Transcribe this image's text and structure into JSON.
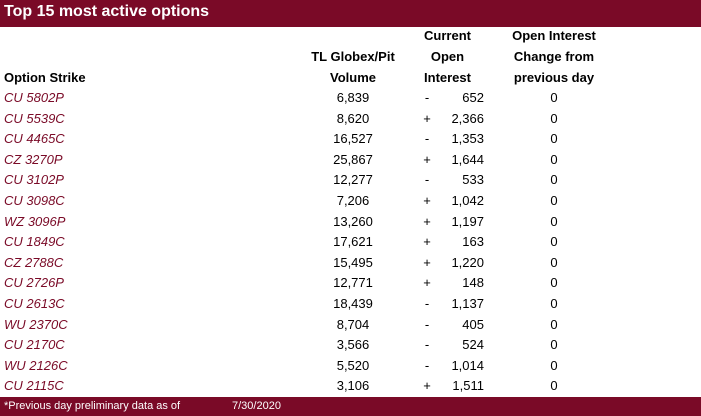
{
  "title": "Top 15 most active options",
  "headers": {
    "strike": "Option Strike",
    "volume": [
      "TL Globex/Pit",
      "Volume"
    ],
    "open_interest": [
      "Current",
      "Open",
      "Interest"
    ],
    "change": [
      "Open Interest",
      "Change from",
      "previous day"
    ]
  },
  "rows": [
    {
      "strike": "CU 5802P",
      "volume": "6,839",
      "sign": "-",
      "oi": "652",
      "change": "0"
    },
    {
      "strike": "CU 5539C",
      "volume": "8,620",
      "sign": "+",
      "oi": "2,366",
      "change": "0"
    },
    {
      "strike": "CU 4465C",
      "volume": "16,527",
      "sign": "-",
      "oi": "1,353",
      "change": "0"
    },
    {
      "strike": "CZ 3270P",
      "volume": "25,867",
      "sign": "+",
      "oi": "1,644",
      "change": "0"
    },
    {
      "strike": "CU 3102P",
      "volume": "12,277",
      "sign": "-",
      "oi": "533",
      "change": "0"
    },
    {
      "strike": "CU 3098C",
      "volume": "7,206",
      "sign": "+",
      "oi": "1,042",
      "change": "0"
    },
    {
      "strike": "WZ 3096P",
      "volume": "13,260",
      "sign": "+",
      "oi": "1,197",
      "change": "0"
    },
    {
      "strike": "CU 1849C",
      "volume": "17,621",
      "sign": "+",
      "oi": "163",
      "change": "0"
    },
    {
      "strike": "CZ 2788C",
      "volume": "15,495",
      "sign": "+",
      "oi": "1,220",
      "change": "0"
    },
    {
      "strike": "CU 2726P",
      "volume": "12,771",
      "sign": "+",
      "oi": "148",
      "change": "0"
    },
    {
      "strike": "CU 2613C",
      "volume": "18,439",
      "sign": "-",
      "oi": "1,137",
      "change": "0"
    },
    {
      "strike": "WU 2370C",
      "volume": "8,704",
      "sign": "-",
      "oi": "405",
      "change": "0"
    },
    {
      "strike": "CU 2170C",
      "volume": "3,566",
      "sign": "-",
      "oi": "524",
      "change": "0"
    },
    {
      "strike": "WU 2126C",
      "volume": "5,520",
      "sign": "-",
      "oi": "1,014",
      "change": "0"
    },
    {
      "strike": "CU 2115C",
      "volume": "3,106",
      "sign": "+",
      "oi": "1,511",
      "change": "0"
    }
  ],
  "footer": {
    "note": "*Previous day preliminary data as of",
    "date": "7/30/2020"
  },
  "colors": {
    "brand": "#7a0a27",
    "strike_text": "#7a0a27"
  }
}
